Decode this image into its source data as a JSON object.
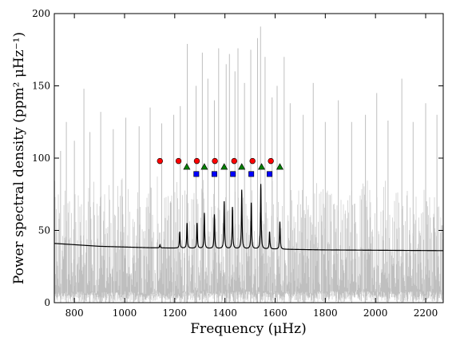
{
  "chart_data": {
    "type": "line",
    "xlabel": "Frequency (μHz)",
    "ylabel": "Power spectral density (ppm² μHz⁻¹)",
    "xlim": [
      720,
      2270
    ],
    "ylim": [
      0,
      200
    ],
    "x_ticks": [
      800,
      1000,
      1200,
      1400,
      1600,
      1800,
      2000,
      2200
    ],
    "y_ticks": [
      0,
      50,
      100,
      150,
      200
    ],
    "grid": false,
    "legend": "none",
    "series": [
      {
        "style": "noisy-spectrum",
        "color": "#bfbfbf",
        "baseline": 40,
        "noise_low": 5,
        "noise_high": 78,
        "spikes": [
          {
            "x": 745,
            "y": 105
          },
          {
            "x": 768,
            "y": 125
          },
          {
            "x": 800,
            "y": 112
          },
          {
            "x": 838,
            "y": 148
          },
          {
            "x": 862,
            "y": 118
          },
          {
            "x": 905,
            "y": 132
          },
          {
            "x": 955,
            "y": 120
          },
          {
            "x": 1005,
            "y": 128
          },
          {
            "x": 1058,
            "y": 122
          },
          {
            "x": 1102,
            "y": 135
          },
          {
            "x": 1148,
            "y": 124
          },
          {
            "x": 1196,
            "y": 130
          },
          {
            "x": 1222,
            "y": 136
          },
          {
            "x": 1250,
            "y": 179
          },
          {
            "x": 1285,
            "y": 150
          },
          {
            "x": 1310,
            "y": 173
          },
          {
            "x": 1332,
            "y": 155
          },
          {
            "x": 1358,
            "y": 140
          },
          {
            "x": 1375,
            "y": 176
          },
          {
            "x": 1405,
            "y": 165
          },
          {
            "x": 1418,
            "y": 172
          },
          {
            "x": 1440,
            "y": 160
          },
          {
            "x": 1452,
            "y": 176
          },
          {
            "x": 1478,
            "y": 152
          },
          {
            "x": 1503,
            "y": 175
          },
          {
            "x": 1530,
            "y": 183
          },
          {
            "x": 1542,
            "y": 191
          },
          {
            "x": 1560,
            "y": 170
          },
          {
            "x": 1588,
            "y": 142
          },
          {
            "x": 1608,
            "y": 150
          },
          {
            "x": 1636,
            "y": 170
          },
          {
            "x": 1660,
            "y": 138
          },
          {
            "x": 1712,
            "y": 130
          },
          {
            "x": 1752,
            "y": 152
          },
          {
            "x": 1800,
            "y": 125
          },
          {
            "x": 1852,
            "y": 140
          },
          {
            "x": 1905,
            "y": 125
          },
          {
            "x": 1960,
            "y": 130
          },
          {
            "x": 2005,
            "y": 145
          },
          {
            "x": 2050,
            "y": 126
          },
          {
            "x": 2105,
            "y": 155
          },
          {
            "x": 2150,
            "y": 125
          },
          {
            "x": 2200,
            "y": 138
          },
          {
            "x": 2245,
            "y": 130
          }
        ]
      },
      {
        "style": "model",
        "color": "#000000",
        "background": [
          [
            720,
            41
          ],
          [
            900,
            39
          ],
          [
            1100,
            38
          ],
          [
            1300,
            37.5
          ],
          [
            1600,
            37
          ],
          [
            1800,
            36.5
          ],
          [
            2270,
            36
          ]
        ],
        "peaks": [
          {
            "x": 1141,
            "y": 40
          },
          {
            "x": 1220,
            "y": 49
          },
          {
            "x": 1249,
            "y": 55
          },
          {
            "x": 1289,
            "y": 55
          },
          {
            "x": 1318,
            "y": 62
          },
          {
            "x": 1358,
            "y": 61
          },
          {
            "x": 1397,
            "y": 70
          },
          {
            "x": 1430,
            "y": 66
          },
          {
            "x": 1467,
            "y": 78
          },
          {
            "x": 1505,
            "y": 69
          },
          {
            "x": 1543,
            "y": 82
          },
          {
            "x": 1578,
            "y": 49
          },
          {
            "x": 1619,
            "y": 56
          }
        ]
      }
    ],
    "markers": [
      {
        "shape": "circle",
        "color": "#ff0000",
        "points": [
          [
            1141,
            98
          ],
          [
            1215,
            98
          ],
          [
            1288,
            98
          ],
          [
            1360,
            98
          ],
          [
            1437,
            98
          ],
          [
            1510,
            98
          ],
          [
            1583,
            98
          ]
        ]
      },
      {
        "shape": "triangle",
        "color": "#008000",
        "points": [
          [
            1248,
            94
          ],
          [
            1318,
            94
          ],
          [
            1397,
            94
          ],
          [
            1467,
            94
          ],
          [
            1546,
            94
          ],
          [
            1619,
            94
          ]
        ]
      },
      {
        "shape": "square",
        "color": "#0000ff",
        "points": [
          [
            1286,
            89
          ],
          [
            1358,
            89
          ],
          [
            1432,
            89
          ],
          [
            1505,
            89
          ],
          [
            1578,
            89
          ]
        ]
      }
    ]
  }
}
